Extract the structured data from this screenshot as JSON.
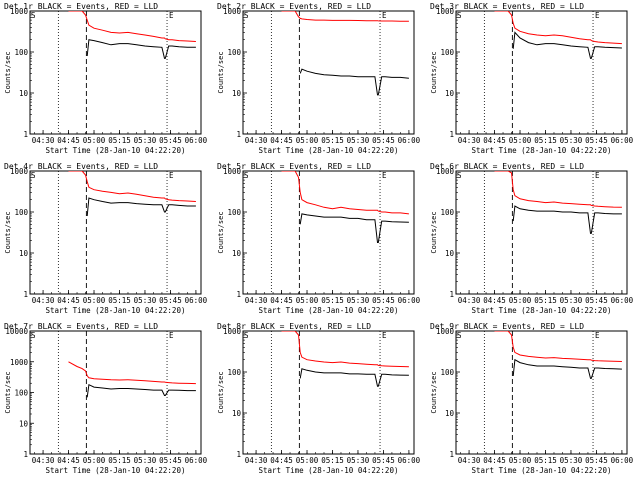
{
  "colors": {
    "events": "#000000",
    "lld": "#ff0000",
    "axis": "#000000",
    "background": "#ffffff"
  },
  "common": {
    "ylabel": "Counts/sec",
    "xlabel": "Start Time (28-Jan-10 04:22:20)",
    "xticks": [
      "04:30",
      "04:45",
      "05:00",
      "05:15",
      "05:30",
      "05:45",
      "06:00"
    ],
    "xtick_minutes": [
      30,
      45,
      60,
      75,
      90,
      105,
      120
    ],
    "xlim_minutes": [
      22.3,
      123
    ],
    "marker_S": "S",
    "marker_E": "E",
    "dotted_lines_minutes": [
      39,
      103
    ],
    "dashed_line_minutes": 55.5
  },
  "chart_data": [
    {
      "type": "line",
      "title": "Det 1r BLACK = Events, RED = LLD",
      "yscale": "log",
      "ylim": [
        1,
        1000
      ],
      "yticks": [
        "1",
        "10",
        "100",
        "1000"
      ],
      "x": [
        45,
        50,
        53,
        55,
        56,
        57,
        60,
        65,
        70,
        75,
        80,
        85,
        90,
        95,
        100,
        101.5,
        102,
        104,
        106,
        110,
        115,
        120
      ],
      "series": [
        {
          "name": "Events",
          "values": [
            null,
            null,
            null,
            null,
            80,
            200,
            190,
            170,
            150,
            160,
            160,
            150,
            140,
            135,
            130,
            70,
            70,
            140,
            140,
            135,
            130,
            130
          ]
        },
        {
          "name": "LLD",
          "values": [
            1000,
            1000,
            1000,
            800,
            600,
            450,
            380,
            340,
            300,
            290,
            300,
            280,
            260,
            240,
            220,
            220,
            210,
            200,
            200,
            190,
            185,
            180
          ]
        }
      ]
    },
    {
      "type": "line",
      "title": "Det 2r BLACK = Events, RED = LLD",
      "yscale": "log",
      "ylim": [
        1,
        1000
      ],
      "yticks": [
        "1",
        "10",
        "100",
        "1000"
      ],
      "x": [
        45,
        50,
        53,
        55,
        56,
        57,
        60,
        65,
        70,
        75,
        80,
        85,
        90,
        95,
        100,
        101.5,
        102,
        104,
        106,
        110,
        115,
        120
      ],
      "series": [
        {
          "name": "Events",
          "values": [
            null,
            null,
            null,
            null,
            30,
            38,
            34,
            30,
            28,
            27,
            26,
            26,
            25,
            25,
            25,
            9,
            9,
            25,
            25,
            24,
            24,
            23
          ]
        },
        {
          "name": "LLD",
          "values": [
            1000,
            1000,
            1000,
            720,
            660,
            640,
            620,
            600,
            600,
            590,
            590,
            590,
            585,
            580,
            580,
            580,
            575,
            570,
            570,
            570,
            565,
            560
          ]
        }
      ]
    },
    {
      "type": "line",
      "title": "Det 3r BLACK = Events, RED = LLD",
      "yscale": "log",
      "ylim": [
        1,
        1000
      ],
      "yticks": [
        "1",
        "10",
        "100",
        "1000"
      ],
      "x": [
        45,
        50,
        53,
        55,
        56,
        57,
        60,
        65,
        70,
        75,
        80,
        85,
        90,
        95,
        100,
        101.5,
        102,
        104,
        106,
        110,
        115,
        120
      ],
      "series": [
        {
          "name": "Events",
          "values": [
            null,
            null,
            null,
            null,
            120,
            300,
            220,
            170,
            150,
            160,
            160,
            150,
            140,
            135,
            130,
            70,
            70,
            135,
            135,
            130,
            128,
            125
          ]
        },
        {
          "name": "LLD",
          "values": [
            1000,
            1000,
            1000,
            800,
            500,
            380,
            320,
            280,
            260,
            250,
            260,
            250,
            230,
            210,
            200,
            200,
            190,
            180,
            175,
            170,
            165,
            160
          ]
        }
      ]
    },
    {
      "type": "line",
      "title": "Det 4r BLACK = Events, RED = LLD",
      "yscale": "log",
      "ylim": [
        1,
        1000
      ],
      "yticks": [
        "1",
        "10",
        "100",
        "1000"
      ],
      "x": [
        45,
        50,
        53,
        55,
        56,
        57,
        60,
        65,
        70,
        75,
        80,
        85,
        90,
        95,
        100,
        101.5,
        102,
        104,
        106,
        110,
        115,
        120
      ],
      "series": [
        {
          "name": "Events",
          "values": [
            null,
            null,
            null,
            null,
            80,
            220,
            200,
            180,
            165,
            170,
            170,
            160,
            155,
            150,
            150,
            100,
            100,
            150,
            150,
            145,
            140,
            140
          ]
        },
        {
          "name": "LLD",
          "values": [
            1000,
            1000,
            1000,
            800,
            550,
            400,
            350,
            320,
            300,
            280,
            290,
            270,
            250,
            230,
            220,
            220,
            210,
            200,
            195,
            190,
            185,
            180
          ]
        }
      ]
    },
    {
      "type": "line",
      "title": "Det 5r BLACK = Events, RED = LLD",
      "yscale": "log",
      "ylim": [
        1,
        1000
      ],
      "yticks": [
        "1",
        "10",
        "100",
        "1000"
      ],
      "x": [
        45,
        50,
        53,
        55,
        56,
        57,
        60,
        65,
        70,
        75,
        80,
        85,
        90,
        95,
        100,
        101.5,
        102,
        104,
        106,
        110,
        115,
        120
      ],
      "series": [
        {
          "name": "Events",
          "values": [
            null,
            null,
            null,
            null,
            50,
            90,
            85,
            80,
            75,
            75,
            75,
            70,
            70,
            65,
            65,
            18,
            18,
            60,
            60,
            58,
            57,
            56
          ]
        },
        {
          "name": "LLD",
          "values": [
            1000,
            1000,
            1000,
            700,
            300,
            200,
            170,
            150,
            130,
            120,
            130,
            120,
            115,
            110,
            110,
            110,
            105,
            100,
            100,
            95,
            95,
            90
          ]
        }
      ]
    },
    {
      "type": "line",
      "title": "Det 6r BLACK = Events, RED = LLD",
      "yscale": "log",
      "ylim": [
        1,
        1000
      ],
      "yticks": [
        "1",
        "10",
        "100",
        "1000"
      ],
      "x": [
        45,
        50,
        53,
        55,
        56,
        57,
        60,
        65,
        70,
        75,
        80,
        85,
        90,
        95,
        100,
        101.5,
        102,
        104,
        106,
        110,
        115,
        120
      ],
      "series": [
        {
          "name": "Events",
          "values": [
            null,
            null,
            null,
            null,
            60,
            140,
            120,
            110,
            105,
            105,
            105,
            100,
            100,
            95,
            95,
            30,
            30,
            95,
            95,
            92,
            90,
            90
          ]
        },
        {
          "name": "LLD",
          "values": [
            1000,
            1000,
            1000,
            900,
            350,
            250,
            210,
            190,
            180,
            170,
            175,
            165,
            160,
            155,
            150,
            150,
            145,
            140,
            138,
            135,
            132,
            130
          ]
        }
      ]
    },
    {
      "type": "line",
      "title": "Det 7r BLACK = Events, RED = LLD",
      "yscale": "log",
      "ylim": [
        1,
        10000
      ],
      "yticks": [
        "1",
        "10",
        "100",
        "1000",
        "10000"
      ],
      "x": [
        45,
        50,
        53,
        55,
        56,
        57,
        60,
        65,
        70,
        75,
        80,
        85,
        90,
        95,
        100,
        101.5,
        102,
        104,
        106,
        110,
        115,
        120
      ],
      "series": [
        {
          "name": "Events",
          "values": [
            null,
            null,
            null,
            null,
            70,
            180,
            150,
            140,
            130,
            135,
            135,
            130,
            125,
            120,
            120,
            80,
            80,
            120,
            120,
            118,
            115,
            115
          ]
        },
        {
          "name": "LLD",
          "values": [
            1000,
            700,
            600,
            500,
            350,
            300,
            280,
            270,
            260,
            255,
            260,
            250,
            240,
            230,
            220,
            220,
            215,
            210,
            205,
            200,
            198,
            195
          ]
        }
      ]
    },
    {
      "type": "line",
      "title": "Det 8r BLACK = Events, RED = LLD",
      "yscale": "log",
      "ylim": [
        1,
        1000
      ],
      "yticks": [
        "1",
        "10",
        "100",
        "1000"
      ],
      "x": [
        45,
        50,
        53,
        55,
        56,
        57,
        60,
        65,
        70,
        75,
        80,
        85,
        90,
        95,
        100,
        101.5,
        102,
        104,
        106,
        110,
        115,
        120
      ],
      "series": [
        {
          "name": "Events",
          "values": [
            null,
            null,
            null,
            null,
            70,
            120,
            110,
            100,
            95,
            95,
            95,
            90,
            90,
            88,
            88,
            45,
            45,
            88,
            88,
            85,
            84,
            83
          ]
        },
        {
          "name": "LLD",
          "values": [
            1000,
            1000,
            1000,
            800,
            300,
            230,
            200,
            185,
            175,
            170,
            175,
            165,
            160,
            155,
            150,
            150,
            145,
            142,
            140,
            138,
            136,
            135
          ]
        }
      ]
    },
    {
      "type": "line",
      "title": "Det 9r BLACK = Events, RED = LLD",
      "yscale": "log",
      "ylim": [
        1,
        1000
      ],
      "yticks": [
        "1",
        "10",
        "100",
        "1000"
      ],
      "x": [
        45,
        50,
        53,
        55,
        56,
        57,
        60,
        65,
        70,
        75,
        80,
        85,
        90,
        95,
        100,
        101.5,
        102,
        104,
        106,
        110,
        115,
        120
      ],
      "series": [
        {
          "name": "Events",
          "values": [
            null,
            null,
            null,
            null,
            80,
            200,
            170,
            150,
            140,
            140,
            140,
            135,
            130,
            125,
            125,
            70,
            70,
            125,
            125,
            122,
            120,
            118
          ]
        },
        {
          "name": "LLD",
          "values": [
            1000,
            1000,
            1000,
            800,
            400,
            300,
            260,
            240,
            230,
            220,
            225,
            215,
            210,
            205,
            200,
            200,
            195,
            190,
            188,
            185,
            182,
            180
          ]
        }
      ]
    }
  ]
}
